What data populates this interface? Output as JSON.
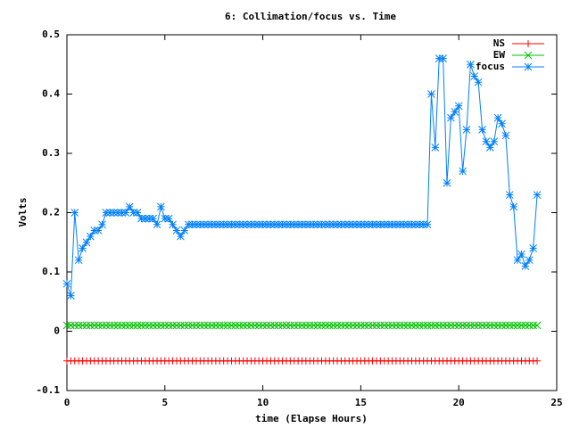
{
  "chart_data": {
    "type": "line",
    "title": "6: Collimation/focus vs. Time",
    "x_label": "time (Elapse Hours)",
    "y_label": "Volts",
    "legend": "top right",
    "xlim": [
      0,
      25
    ],
    "xticks": [
      0,
      5,
      10,
      15,
      20,
      25
    ],
    "ylim": [
      -0.1,
      0.5
    ],
    "yticks": [
      -0.1,
      0,
      0.1,
      0.2,
      0.3,
      0.4,
      0.5
    ],
    "x": [
      0,
      0.2,
      0.4,
      0.6,
      0.8,
      1,
      1.2,
      1.4,
      1.6,
      1.8,
      2,
      2.2,
      2.4,
      2.6,
      2.8,
      3,
      3.2,
      3.4,
      3.6,
      3.8,
      4,
      4.2,
      4.4,
      4.6,
      4.8,
      5,
      5.2,
      5.4,
      5.6,
      5.8,
      6,
      6.2,
      6.4,
      6.6,
      6.8,
      7,
      7.2,
      7.4,
      7.6,
      7.8,
      8,
      8.2,
      8.4,
      8.6,
      8.8,
      9,
      9.2,
      9.4,
      9.6,
      9.8,
      10,
      10.2,
      10.4,
      10.6,
      10.8,
      11,
      11.2,
      11.4,
      11.6,
      11.8,
      12,
      12.2,
      12.4,
      12.6,
      12.8,
      13,
      13.2,
      13.4,
      13.6,
      13.8,
      14,
      14.2,
      14.4,
      14.6,
      14.8,
      15,
      15.2,
      15.4,
      15.6,
      15.8,
      16,
      16.2,
      16.4,
      16.6,
      16.8,
      17,
      17.2,
      17.4,
      17.6,
      17.8,
      18,
      18.2,
      18.4,
      18.6,
      18.8,
      19,
      19.2,
      19.4,
      19.6,
      19.8,
      20,
      20.2,
      20.4,
      20.6,
      20.8,
      21,
      21.2,
      21.4,
      21.6,
      21.8,
      22,
      22.2,
      22.4,
      22.6,
      22.8,
      23,
      23.2,
      23.4,
      23.6,
      23.8,
      24
    ],
    "series": [
      {
        "name": "NS",
        "color": "#ff0000",
        "marker": "plus",
        "values": [
          -0.05,
          -0.05,
          -0.05,
          -0.05,
          -0.05,
          -0.05,
          -0.05,
          -0.05,
          -0.05,
          -0.05,
          -0.05,
          -0.05,
          -0.05,
          -0.05,
          -0.05,
          -0.05,
          -0.05,
          -0.05,
          -0.05,
          -0.05,
          -0.05,
          -0.05,
          -0.05,
          -0.05,
          -0.05,
          -0.05,
          -0.05,
          -0.05,
          -0.05,
          -0.05,
          -0.05,
          -0.05,
          -0.05,
          -0.05,
          -0.05,
          -0.05,
          -0.05,
          -0.05,
          -0.05,
          -0.05,
          -0.05,
          -0.05,
          -0.05,
          -0.05,
          -0.05,
          -0.05,
          -0.05,
          -0.05,
          -0.05,
          -0.05,
          -0.05,
          -0.05,
          -0.05,
          -0.05,
          -0.05,
          -0.05,
          -0.05,
          -0.05,
          -0.05,
          -0.05,
          -0.05,
          -0.05,
          -0.05,
          -0.05,
          -0.05,
          -0.05,
          -0.05,
          -0.05,
          -0.05,
          -0.05,
          -0.05,
          -0.05,
          -0.05,
          -0.05,
          -0.05,
          -0.05,
          -0.05,
          -0.05,
          -0.05,
          -0.05,
          -0.05,
          -0.05,
          -0.05,
          -0.05,
          -0.05,
          -0.05,
          -0.05,
          -0.05,
          -0.05,
          -0.05,
          -0.05,
          -0.05,
          -0.05,
          -0.05,
          -0.05,
          -0.05,
          -0.05,
          -0.05,
          -0.05,
          -0.05,
          -0.05,
          -0.05,
          -0.05,
          -0.05,
          -0.05,
          -0.05,
          -0.05,
          -0.05,
          -0.05,
          -0.05,
          -0.05,
          -0.05,
          -0.05,
          -0.05,
          -0.05,
          -0.05,
          -0.05,
          -0.05,
          -0.05,
          -0.05,
          -0.05
        ]
      },
      {
        "name": "EW",
        "color": "#00c000",
        "marker": "cross",
        "values": [
          0.01,
          0.01,
          0.01,
          0.01,
          0.01,
          0.01,
          0.01,
          0.01,
          0.01,
          0.01,
          0.01,
          0.01,
          0.01,
          0.01,
          0.01,
          0.01,
          0.01,
          0.01,
          0.01,
          0.01,
          0.01,
          0.01,
          0.01,
          0.01,
          0.01,
          0.01,
          0.01,
          0.01,
          0.01,
          0.01,
          0.01,
          0.01,
          0.01,
          0.01,
          0.01,
          0.01,
          0.01,
          0.01,
          0.01,
          0.01,
          0.01,
          0.01,
          0.01,
          0.01,
          0.01,
          0.01,
          0.01,
          0.01,
          0.01,
          0.01,
          0.01,
          0.01,
          0.01,
          0.01,
          0.01,
          0.01,
          0.01,
          0.01,
          0.01,
          0.01,
          0.01,
          0.01,
          0.01,
          0.01,
          0.01,
          0.01,
          0.01,
          0.01,
          0.01,
          0.01,
          0.01,
          0.01,
          0.01,
          0.01,
          0.01,
          0.01,
          0.01,
          0.01,
          0.01,
          0.01,
          0.01,
          0.01,
          0.01,
          0.01,
          0.01,
          0.01,
          0.01,
          0.01,
          0.01,
          0.01,
          0.01,
          0.01,
          0.01,
          0.01,
          0.01,
          0.01,
          0.01,
          0.01,
          0.01,
          0.01,
          0.01,
          0.01,
          0.01,
          0.01,
          0.01,
          0.01,
          0.01,
          0.01,
          0.01,
          0.01,
          0.01,
          0.01,
          0.01,
          0.01,
          0.01,
          0.01,
          0.01,
          0.01,
          0.01,
          0.01,
          0.01
        ]
      },
      {
        "name": "focus",
        "color": "#0080ff",
        "marker": "star",
        "values": [
          0.08,
          0.06,
          0.2,
          0.12,
          0.14,
          0.15,
          0.16,
          0.17,
          0.17,
          0.18,
          0.2,
          0.2,
          0.2,
          0.2,
          0.2,
          0.2,
          0.21,
          0.2,
          0.2,
          0.19,
          0.19,
          0.19,
          0.19,
          0.18,
          0.21,
          0.19,
          0.19,
          0.18,
          0.17,
          0.16,
          0.17,
          0.18,
          0.18,
          0.18,
          0.18,
          0.18,
          0.18,
          0.18,
          0.18,
          0.18,
          0.18,
          0.18,
          0.18,
          0.18,
          0.18,
          0.18,
          0.18,
          0.18,
          0.18,
          0.18,
          0.18,
          0.18,
          0.18,
          0.18,
          0.18,
          0.18,
          0.18,
          0.18,
          0.18,
          0.18,
          0.18,
          0.18,
          0.18,
          0.18,
          0.18,
          0.18,
          0.18,
          0.18,
          0.18,
          0.18,
          0.18,
          0.18,
          0.18,
          0.18,
          0.18,
          0.18,
          0.18,
          0.18,
          0.18,
          0.18,
          0.18,
          0.18,
          0.18,
          0.18,
          0.18,
          0.18,
          0.18,
          0.18,
          0.18,
          0.18,
          0.18,
          0.18,
          0.18,
          0.4,
          0.31,
          0.46,
          0.46,
          0.25,
          0.36,
          0.37,
          0.38,
          0.27,
          0.34,
          0.45,
          0.43,
          0.42,
          0.34,
          0.32,
          0.31,
          0.32,
          0.36,
          0.35,
          0.33,
          0.23,
          0.21,
          0.12,
          0.13,
          0.11,
          0.12,
          0.14,
          0.23
        ]
      }
    ]
  }
}
